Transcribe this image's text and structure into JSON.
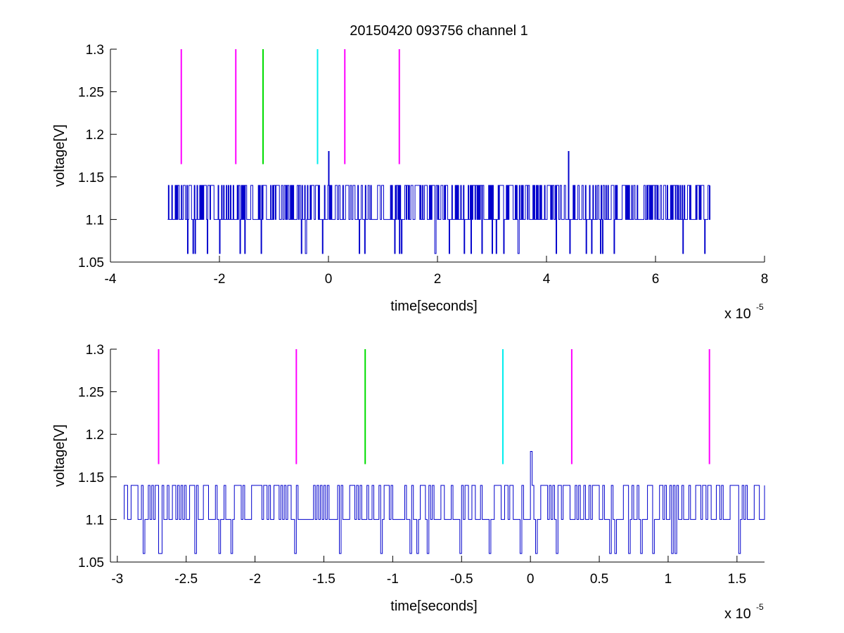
{
  "figure_title": "20150420 093756 channel 1",
  "colors": {
    "signal": "#0000cc",
    "magenta": "#ff00ff",
    "green": "#00dd00",
    "cyan": "#00eeee",
    "axis": "#000000"
  },
  "chart_data": [
    {
      "type": "line",
      "title": "20150420 093756 channel 1",
      "xlabel": "time[seconds]",
      "ylabel": "voltage[V]",
      "x_multiplier_label": "x 10",
      "x_multiplier_exp": "-5",
      "xlim": [
        -4,
        8
      ],
      "ylim": [
        1.05,
        1.3
      ],
      "xticks": [
        "-4",
        "-2",
        "0",
        "2",
        "4",
        "6",
        "8"
      ],
      "xtick_values": [
        -4,
        -2,
        0,
        2,
        4,
        6,
        8
      ],
      "yticks": [
        "1.05",
        "1.1",
        "1.15",
        "1.2",
        "1.25",
        "1.3"
      ],
      "ytick_values": [
        1.05,
        1.1,
        1.15,
        1.2,
        1.25,
        1.3
      ],
      "grid": false,
      "signal": {
        "x_start": -2.95,
        "x_end": 7.0,
        "baseline": 1.1,
        "high": 1.14,
        "low": 1.06,
        "peak_values": [
          [
            0.0,
            1.18
          ],
          [
            4.4,
            1.18
          ]
        ]
      },
      "markers": [
        {
          "x": -2.7,
          "y_range": [
            1.165,
            1.3
          ],
          "color": "magenta"
        },
        {
          "x": -1.7,
          "y_range": [
            1.165,
            1.3
          ],
          "color": "magenta"
        },
        {
          "x": -1.2,
          "y_range": [
            1.165,
            1.3
          ],
          "color": "green"
        },
        {
          "x": -0.2,
          "y_range": [
            1.165,
            1.3
          ],
          "color": "cyan"
        },
        {
          "x": 0.3,
          "y_range": [
            1.165,
            1.3
          ],
          "color": "magenta"
        },
        {
          "x": 1.3,
          "y_range": [
            1.165,
            1.3
          ],
          "color": "magenta"
        }
      ]
    },
    {
      "type": "line",
      "title": "",
      "xlabel": "time[seconds]",
      "ylabel": "voltage[V]",
      "x_multiplier_label": "x 10",
      "x_multiplier_exp": "-5",
      "xlim": [
        -3.05,
        1.7
      ],
      "ylim": [
        1.05,
        1.3
      ],
      "xticks": [
        "-3",
        "-2.5",
        "-2",
        "-1.5",
        "-1",
        "-0.5",
        "0",
        "0.5",
        "1",
        "1.5"
      ],
      "xtick_values": [
        -3,
        -2.5,
        -2,
        -1.5,
        -1,
        -0.5,
        0,
        0.5,
        1,
        1.5
      ],
      "yticks": [
        "1.05",
        "1.1",
        "1.15",
        "1.2",
        "1.25",
        "1.3"
      ],
      "ytick_values": [
        1.05,
        1.1,
        1.15,
        1.2,
        1.25,
        1.3
      ],
      "grid": false,
      "signal": {
        "x_start": -2.95,
        "x_end": 1.7,
        "baseline": 1.1,
        "high": 1.14,
        "low": 1.06,
        "peak_values": [
          [
            0.0,
            1.18
          ]
        ]
      },
      "markers": [
        {
          "x": -2.7,
          "y_range": [
            1.165,
            1.3
          ],
          "color": "magenta"
        },
        {
          "x": -1.7,
          "y_range": [
            1.165,
            1.3
          ],
          "color": "magenta"
        },
        {
          "x": -1.2,
          "y_range": [
            1.165,
            1.3
          ],
          "color": "green"
        },
        {
          "x": -0.2,
          "y_range": [
            1.165,
            1.3
          ],
          "color": "cyan"
        },
        {
          "x": 0.3,
          "y_range": [
            1.165,
            1.3
          ],
          "color": "magenta"
        },
        {
          "x": 1.3,
          "y_range": [
            1.165,
            1.3
          ],
          "color": "magenta"
        }
      ]
    }
  ]
}
